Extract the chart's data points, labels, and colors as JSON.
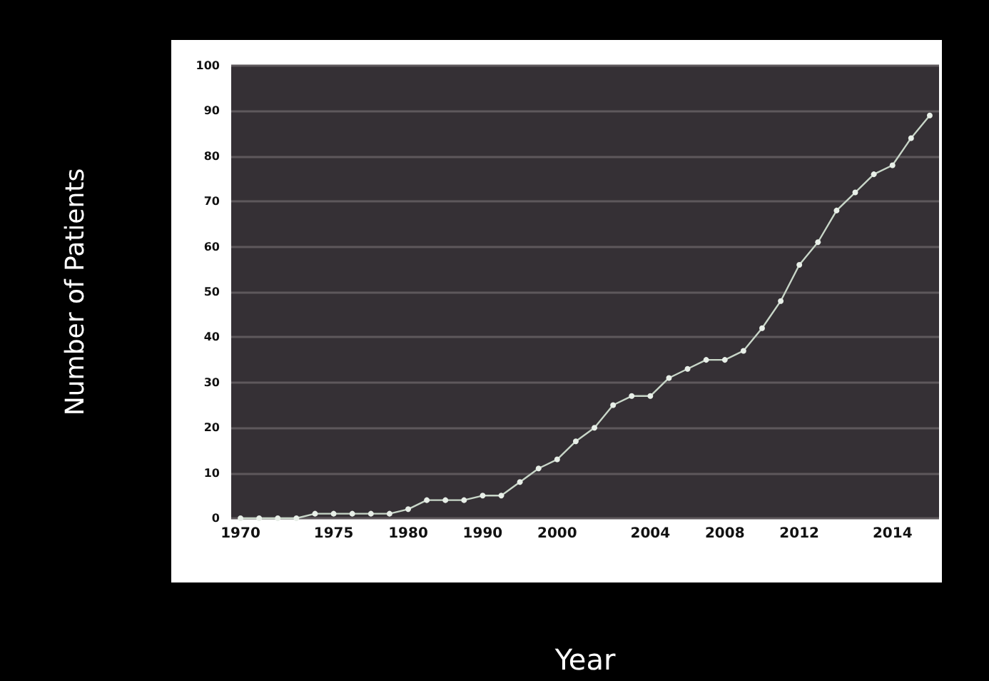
{
  "chart_data": {
    "type": "line",
    "xlabel": "Year",
    "ylabel": "Number of Patients",
    "categories": [
      "1970",
      null,
      null,
      null,
      null,
      "1975",
      null,
      null,
      null,
      "1980",
      null,
      null,
      null,
      "1990",
      null,
      null,
      null,
      "2000",
      null,
      null,
      null,
      null,
      "2004",
      null,
      null,
      null,
      "2008",
      null,
      null,
      null,
      "2012",
      null,
      null,
      null,
      null,
      "2014",
      null,
      null
    ],
    "series": [
      {
        "color": "#c8d6c8",
        "values": [
          0,
          0,
          0,
          0,
          1,
          1,
          1,
          1,
          1,
          2,
          4,
          4,
          4,
          5,
          5,
          8,
          11,
          13,
          17,
          20,
          25,
          27,
          27,
          31,
          33,
          35,
          35,
          37,
          42,
          48,
          56,
          61,
          68,
          72,
          76,
          78,
          84,
          89
        ]
      }
    ],
    "ylim": [
      0,
      100
    ],
    "yticks": [
      0,
      10,
      20,
      30,
      40,
      50,
      60,
      70,
      80,
      90,
      100
    ],
    "grid": "y",
    "marker": "circle",
    "line_style": "solid"
  }
}
